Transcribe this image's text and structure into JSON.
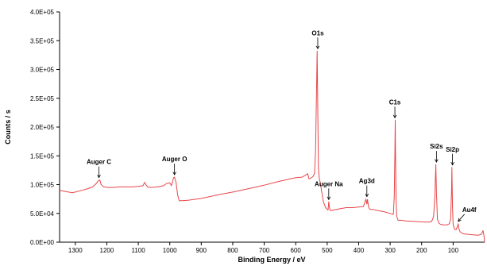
{
  "chart_data": {
    "type": "line",
    "title": "",
    "xlabel": "Binding Energy / eV",
    "ylabel": "Counts / s",
    "xlim": [
      1350,
      0
    ],
    "ylim": [
      0,
      400000
    ],
    "x_ticks": [
      1300,
      1200,
      1100,
      1000,
      900,
      800,
      700,
      600,
      500,
      400,
      300,
      200,
      100
    ],
    "x_tick_labels": [
      "1300",
      "1200",
      "1100",
      "1000",
      "900",
      "800",
      "700",
      "600",
      "500",
      "400",
      "300",
      "200",
      "100"
    ],
    "y_ticks": [
      0,
      50000,
      100000,
      150000,
      200000,
      250000,
      300000,
      350000,
      400000
    ],
    "y_tick_labels": [
      "0.0E+00",
      "5.0E+04",
      "1.0E+05",
      "1.5E+05",
      "2.0E+05",
      "2.5E+05",
      "3.0E+05",
      "3.5E+05",
      "4.0E+05"
    ],
    "grid": false,
    "legend": "none",
    "line_color": "#e8464a",
    "series": [
      {
        "x": [
          1350,
          1330,
          1310,
          1300,
          1280,
          1260,
          1245,
          1235,
          1228,
          1222,
          1218,
          1210,
          1195,
          1180,
          1160,
          1140,
          1120,
          1100,
          1085,
          1080,
          1076,
          1070,
          1060,
          1040,
          1020,
          1010,
          1000,
          995,
          992,
          988,
          985,
          980,
          975,
          970,
          960,
          940,
          900,
          850,
          800,
          750,
          700,
          650,
          600,
          580,
          570,
          562,
          558,
          550,
          545,
          540,
          537,
          534,
          532,
          530,
          528,
          525,
          522,
          518,
          512,
          505,
          500,
          497,
          495,
          492,
          490,
          485,
          480,
          470,
          460,
          450,
          440,
          420,
          400,
          385,
          380,
          377,
          374,
          372,
          369,
          366,
          362,
          355,
          340,
          320,
          300,
          290,
          287,
          285,
          284,
          283,
          281,
          279,
          275,
          265,
          250,
          220,
          190,
          175,
          168,
          162,
          158,
          155,
          153,
          150,
          145,
          140,
          130,
          120,
          112,
          108,
          105,
          104,
          102,
          100,
          95,
          90,
          86,
          84,
          82,
          78,
          70,
          60,
          40,
          20,
          10,
          5,
          2,
          0
        ],
        "y": [
          90000,
          88000,
          86000,
          87000,
          90000,
          93000,
          96000,
          101000,
          106000,
          108000,
          100000,
          96000,
          95000,
          95000,
          96000,
          96000,
          96000,
          97000,
          98000,
          104000,
          100000,
          96000,
          95000,
          96000,
          98000,
          102000,
          103000,
          98000,
          104000,
          112000,
          113000,
          104000,
          82000,
          72000,
          72000,
          73000,
          76000,
          82000,
          87000,
          93000,
          99000,
          106000,
          112000,
          113000,
          116000,
          119000,
          110000,
          112000,
          114000,
          120000,
          160000,
          260000,
          332000,
          230000,
          130000,
          110000,
          104000,
          90000,
          70000,
          60000,
          57000,
          56000,
          70000,
          58000,
          55000,
          55000,
          56000,
          57000,
          58000,
          59000,
          60000,
          60000,
          61000,
          62000,
          70000,
          75000,
          66000,
          74000,
          62000,
          58000,
          57000,
          57000,
          55000,
          53000,
          50000,
          48000,
          80000,
          160000,
          212000,
          160000,
          70000,
          45000,
          38000,
          38000,
          37000,
          36000,
          35000,
          35000,
          36000,
          45000,
          80000,
          135000,
          85000,
          40000,
          33000,
          31000,
          30000,
          30000,
          32000,
          40000,
          90000,
          130000,
          60000,
          30000,
          22000,
          22000,
          28000,
          32000,
          24000,
          18000,
          15000,
          14000,
          13000,
          12000,
          14000,
          20000,
          11000,
          0
        ]
      }
    ],
    "annotations": [
      {
        "text": "O1s",
        "x": 530,
        "y": 332000
      },
      {
        "text": "C1s",
        "x": 285,
        "y": 212000
      },
      {
        "text": "Auger C",
        "x": 1225,
        "y": 108000
      },
      {
        "text": "Auger O",
        "x": 985,
        "y": 113000
      },
      {
        "text": "Auger Na",
        "x": 495,
        "y": 70000
      },
      {
        "text": "Ag3d",
        "x": 374,
        "y": 75000
      },
      {
        "text": "Si2s",
        "x": 153,
        "y": 135000
      },
      {
        "text": "Si2p",
        "x": 102,
        "y": 130000
      },
      {
        "text": "Au4f",
        "x": 84,
        "y": 32000
      }
    ]
  }
}
